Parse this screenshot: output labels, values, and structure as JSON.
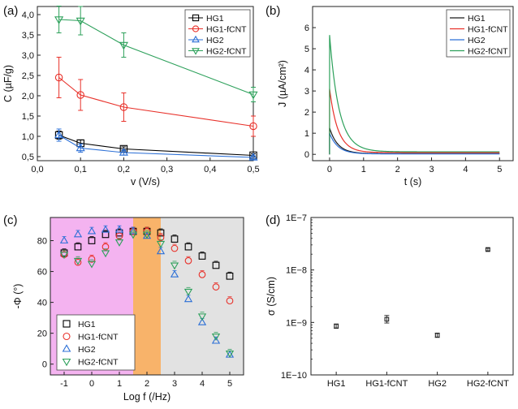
{
  "figure": {
    "panel_labels": [
      "(a)",
      "(b)",
      "(c)",
      "(d)"
    ]
  },
  "chart_data": [
    {
      "type": "line",
      "panel": "(a)",
      "xlabel": "v (V/s)",
      "ylabel": "C (µF/g)",
      "xlim": [
        0.0,
        0.5
      ],
      "ylim": [
        0.4,
        4.2
      ],
      "xticks": [
        0.0,
        0.1,
        0.2,
        0.3,
        0.4,
        0.5
      ],
      "xtick_labels": [
        "0,0",
        "0,1",
        "0,2",
        "0,3",
        "0,4",
        "0,5"
      ],
      "yticks": [
        0.5,
        1.0,
        1.5,
        2.0,
        2.5,
        3.0,
        3.5,
        4.0
      ],
      "ytick_labels": [
        "0,5",
        "1,0",
        "1,5",
        "2,0",
        "2,5",
        "3,0",
        "3,5",
        "4,0"
      ],
      "x": [
        0.05,
        0.1,
        0.2,
        0.5
      ],
      "legend_position": "top-right",
      "series": [
        {
          "name": "HG1",
          "values": [
            1.03,
            0.83,
            0.69,
            0.53
          ],
          "errors": [
            0.1,
            0.08,
            0.05,
            0.04
          ],
          "color": "#000000",
          "marker": "square"
        },
        {
          "name": "HG1-fCNT",
          "values": [
            2.45,
            2.02,
            1.72,
            1.25
          ],
          "errors": [
            0.5,
            0.38,
            0.35,
            0.25
          ],
          "color": "#e8312a",
          "marker": "circle"
        },
        {
          "name": "HG2",
          "values": [
            1.03,
            0.71,
            0.6,
            0.48
          ],
          "errors": [
            0.15,
            0.1,
            0.06,
            0.04
          ],
          "color": "#2b6fd6",
          "marker": "triangle-up"
        },
        {
          "name": "HG2-fCNT",
          "values": [
            3.88,
            3.85,
            3.25,
            2.03
          ],
          "errors": [
            0.33,
            0.35,
            0.3,
            0.18
          ],
          "color": "#2ca05a",
          "marker": "triangle-down"
        }
      ]
    },
    {
      "type": "line",
      "panel": "(b)",
      "xlabel": "t (s)",
      "ylabel": "J (µA/cm²)",
      "xlim": [
        -0.5,
        5.4
      ],
      "ylim": [
        -0.3,
        7.0
      ],
      "xticks": [
        0,
        1,
        2,
        3,
        4,
        5
      ],
      "xtick_labels": [
        "0",
        "1",
        "2",
        "3",
        "4",
        "5"
      ],
      "yticks": [
        0,
        1,
        2,
        3,
        4,
        5,
        6
      ],
      "ytick_labels": [
        "0",
        "1",
        "2",
        "3",
        "4",
        "5",
        "6"
      ],
      "legend_position": "top-right",
      "series": [
        {
          "name": "HG1",
          "peak": 1.25,
          "tau": 0.3,
          "baseline": 0.03,
          "color": "#1a1a1a"
        },
        {
          "name": "HG1-fCNT",
          "peak": 3.1,
          "tau": 0.3,
          "baseline": 0.08,
          "color": "#e8312a"
        },
        {
          "name": "HG2",
          "peak": 1.0,
          "tau": 0.3,
          "baseline": 0.02,
          "color": "#2b6fd6"
        },
        {
          "name": "HG2-fCNT",
          "peak": 5.65,
          "tau": 0.35,
          "baseline": 0.12,
          "color": "#2ca05a"
        }
      ]
    },
    {
      "type": "scatter",
      "panel": "(c)",
      "xlabel": "Log f (/Hz)",
      "ylabel": "-Φ (°)",
      "xlim": [
        -1.5,
        5.5
      ],
      "ylim": [
        -7,
        95
      ],
      "xticks": [
        -1,
        0,
        1,
        2,
        3,
        4,
        5
      ],
      "xtick_labels": [
        "-1",
        "0",
        "1",
        "2",
        "3",
        "4",
        "5"
      ],
      "yticks": [
        0,
        20,
        40,
        60,
        80
      ],
      "ytick_labels": [
        "0",
        "20",
        "40",
        "60",
        "80"
      ],
      "legend_position": "bottom-left",
      "regions": [
        {
          "from": -1.5,
          "to": 1.5,
          "color": "#f4b3f0"
        },
        {
          "from": 1.5,
          "to": 2.5,
          "color": "#f8b36a"
        },
        {
          "from": 2.5,
          "to": 5.5,
          "color": "#e2e2e2"
        }
      ],
      "series": [
        {
          "name": "HG1",
          "color": "#000000",
          "marker": "square",
          "points": [
            [
              -1.0,
              72
            ],
            [
              -0.5,
              76
            ],
            [
              0.0,
              80
            ],
            [
              0.5,
              84
            ],
            [
              1.0,
              85
            ],
            [
              1.5,
              86
            ],
            [
              2.0,
              86
            ],
            [
              2.5,
              85
            ],
            [
              3.0,
              81
            ],
            [
              3.5,
              76
            ],
            [
              4.0,
              70
            ],
            [
              4.5,
              64
            ],
            [
              5.0,
              57
            ]
          ]
        },
        {
          "name": "HG1-fCNT",
          "color": "#e8312a",
          "marker": "circle",
          "points": [
            [
              -1.0,
              71
            ],
            [
              -0.5,
              66
            ],
            [
              0.0,
              68
            ],
            [
              0.5,
              76
            ],
            [
              1.0,
              83
            ],
            [
              1.5,
              86
            ],
            [
              2.0,
              86
            ],
            [
              2.5,
              82
            ],
            [
              3.0,
              75
            ],
            [
              3.5,
              67
            ],
            [
              4.0,
              58
            ],
            [
              4.5,
              50
            ],
            [
              5.0,
              41
            ]
          ]
        },
        {
          "name": "HG2",
          "color": "#2b6fd6",
          "marker": "triangle-up",
          "points": [
            [
              -1.0,
              80
            ],
            [
              -0.5,
              84
            ],
            [
              0.0,
              86
            ],
            [
              0.5,
              87
            ],
            [
              1.0,
              87
            ],
            [
              1.5,
              86
            ],
            [
              2.0,
              83
            ],
            [
              2.5,
              73
            ],
            [
              3.0,
              58
            ],
            [
              3.5,
              42
            ],
            [
              4.0,
              27
            ],
            [
              4.5,
              15
            ],
            [
              5.0,
              6
            ]
          ]
        },
        {
          "name": "HG2-fCNT",
          "color": "#2ca05a",
          "marker": "triangle-down",
          "points": [
            [
              -1.0,
              71
            ],
            [
              -0.5,
              67
            ],
            [
              0.0,
              65
            ],
            [
              0.5,
              72
            ],
            [
              1.0,
              79
            ],
            [
              1.5,
              84
            ],
            [
              2.0,
              84
            ],
            [
              2.5,
              78
            ],
            [
              3.0,
              64
            ],
            [
              3.5,
              47
            ],
            [
              4.0,
              31
            ],
            [
              4.5,
              18
            ],
            [
              5.0,
              7
            ]
          ]
        }
      ]
    },
    {
      "type": "scatter",
      "panel": "(d)",
      "xlabel": "",
      "ylabel": "σ (S/cm)",
      "yscale": "log",
      "ylim": [
        1e-10,
        1e-07
      ],
      "yticks": [
        1e-10,
        1e-09,
        1e-08,
        1e-07
      ],
      "ytick_labels": [
        "1E−10",
        "1E−9",
        "1E−8",
        "1E−7"
      ],
      "categories": [
        "HG1",
        "HG1-fCNT",
        "HG2",
        "HG2-fCNT"
      ],
      "values": [
        8.5e-10,
        1.15e-09,
        5.7e-10,
        2.45e-08
      ],
      "error_factor": [
        1.1,
        1.18,
        1.1,
        1.06
      ],
      "color": "#222222",
      "marker": "square"
    }
  ]
}
